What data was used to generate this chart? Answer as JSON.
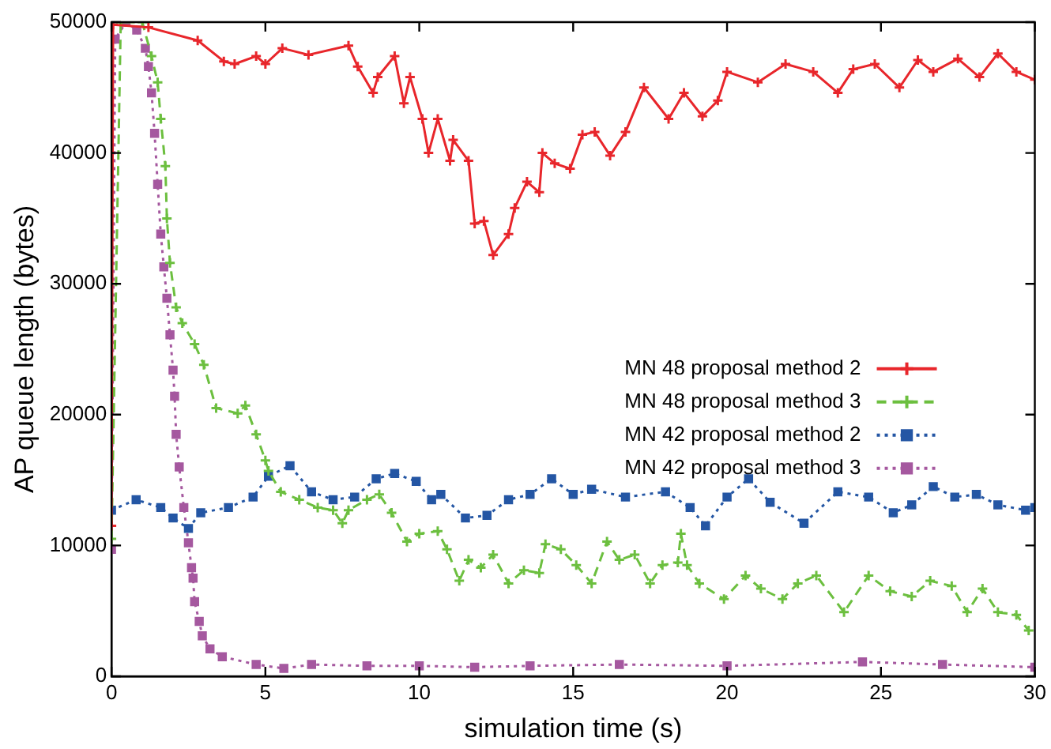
{
  "chart_data": {
    "type": "line",
    "xlabel": "simulation time (s)",
    "ylabel": "AP queue length (bytes)",
    "xlim": [
      0,
      30
    ],
    "xticks": [
      0,
      5,
      10,
      15,
      20,
      25,
      30
    ],
    "ylim": [
      0,
      50000
    ],
    "yticks": [
      0,
      10000,
      20000,
      30000,
      40000,
      50000
    ],
    "grid": false,
    "legend": "right",
    "series": [
      {
        "name": "MN 48 proposal method 2",
        "color": "#e8262b",
        "marker": "cross",
        "line_style": "solid",
        "x": [
          0,
          0.05,
          1.2,
          2.8,
          3.65,
          4.0,
          4.7,
          5.0,
          5.55,
          6.4,
          7.7,
          8.0,
          8.5,
          8.65,
          9.2,
          9.5,
          9.7,
          10.1,
          10.3,
          10.6,
          11.0,
          11.1,
          11.6,
          11.8,
          12.1,
          12.4,
          12.9,
          13.1,
          13.5,
          13.9,
          14.0,
          14.4,
          14.9,
          15.3,
          15.7,
          16.2,
          16.7,
          17.3,
          18.1,
          18.6,
          19.2,
          19.7,
          20.0,
          21.0,
          21.9,
          22.8,
          23.6,
          24.1,
          24.8,
          25.6,
          26.2,
          26.7,
          27.5,
          28.2,
          28.8,
          29.4,
          30.0
        ],
        "values": [
          11500,
          49800,
          49600,
          48600,
          47000,
          46800,
          47400,
          46800,
          48000,
          47500,
          48200,
          46600,
          44600,
          45800,
          47400,
          43800,
          45800,
          42600,
          40000,
          42600,
          39400,
          41000,
          39400,
          34600,
          34800,
          32200,
          33800,
          35800,
          37800,
          37000,
          40000,
          39200,
          38800,
          41400,
          41600,
          39800,
          41600,
          45000,
          42600,
          44600,
          42800,
          44000,
          46200,
          45400,
          46800,
          46200,
          44600,
          46400,
          46800,
          45000,
          47100,
          46200,
          47200,
          45800,
          47600,
          46200,
          45600
        ]
      },
      {
        "name": "MN 48 proposal method 3",
        "color": "#6cbf3f",
        "marker": "cross",
        "line_style": "dashed",
        "x": [
          0,
          0.3,
          1.0,
          1.3,
          1.5,
          1.6,
          1.75,
          1.8,
          1.9,
          2.1,
          2.3,
          2.7,
          3.0,
          3.4,
          4.1,
          4.35,
          4.7,
          5.0,
          5.1,
          5.5,
          6.1,
          6.7,
          7.2,
          7.5,
          7.7,
          8.3,
          8.7,
          9.1,
          9.6,
          10.0,
          10.6,
          10.9,
          11.3,
          11.6,
          12.0,
          12.4,
          12.9,
          13.4,
          13.9,
          14.1,
          14.6,
          15.1,
          15.6,
          16.1,
          16.5,
          17.0,
          17.5,
          17.9,
          18.4,
          18.5,
          18.7,
          19.1,
          19.9,
          20.6,
          21.1,
          21.8,
          22.3,
          22.9,
          23.8,
          24.6,
          25.3,
          26.0,
          26.6,
          27.3,
          27.8,
          28.3,
          28.8,
          29.4,
          29.8
        ],
        "values": [
          10500,
          50000,
          50000,
          47400,
          45400,
          42600,
          39000,
          35000,
          31600,
          28200,
          27000,
          25400,
          23800,
          20500,
          20100,
          20700,
          18500,
          16500,
          15700,
          14100,
          13500,
          12900,
          12700,
          11700,
          12700,
          13500,
          13900,
          12500,
          10300,
          10900,
          11100,
          9700,
          7300,
          8900,
          8300,
          9300,
          7100,
          8100,
          7900,
          10100,
          9700,
          8500,
          7100,
          10300,
          8900,
          9300,
          7100,
          8500,
          8700,
          10900,
          8500,
          7100,
          5900,
          7700,
          6700,
          5900,
          7100,
          7700,
          4900,
          7700,
          6500,
          6100,
          7300,
          6900,
          4900,
          6700,
          4900,
          4700,
          3500
        ]
      },
      {
        "name": "MN 42 proposal method 2",
        "color": "#2456a4",
        "marker": "square",
        "line_style": "dotted",
        "x": [
          0,
          0.8,
          1.6,
          2.0,
          2.5,
          2.9,
          3.8,
          4.6,
          5.1,
          5.8,
          6.5,
          7.2,
          7.9,
          8.6,
          9.2,
          9.9,
          10.4,
          10.7,
          11.5,
          12.2,
          12.9,
          13.6,
          14.3,
          15.0,
          15.6,
          16.7,
          18.0,
          18.8,
          19.3,
          20.0,
          20.7,
          21.4,
          22.5,
          23.6,
          24.6,
          25.4,
          26.0,
          26.7,
          27.4,
          28.1,
          28.8,
          29.7,
          30.0
        ],
        "values": [
          12700,
          13500,
          12900,
          12100,
          11300,
          12500,
          12900,
          13700,
          15300,
          16100,
          14100,
          13500,
          13700,
          15100,
          15500,
          14900,
          13500,
          13900,
          12100,
          12300,
          13500,
          13900,
          15100,
          13900,
          14300,
          13700,
          14100,
          12900,
          11500,
          13700,
          15100,
          13300,
          11700,
          14100,
          13700,
          12500,
          13100,
          14500,
          13700,
          13900,
          13100,
          12700,
          12900
        ]
      },
      {
        "name": "MN 42 proposal method 3",
        "color": "#a5589f",
        "marker": "square",
        "line_style": "dotted",
        "x": [
          0,
          0.12,
          0.47,
          0.82,
          1.1,
          1.2,
          1.3,
          1.4,
          1.5,
          1.6,
          1.7,
          1.8,
          1.9,
          2.0,
          2.05,
          2.1,
          2.2,
          2.35,
          2.5,
          2.6,
          2.65,
          2.7,
          2.85,
          2.95,
          3.2,
          3.6,
          4.7,
          5.6,
          6.5,
          8.3,
          10.0,
          11.8,
          13.6,
          16.5,
          20.0,
          24.4,
          27.0,
          30.0
        ],
        "values": [
          9700,
          48700,
          50000,
          49400,
          48000,
          46600,
          44600,
          41500,
          37600,
          33800,
          31300,
          28900,
          26100,
          23400,
          21400,
          18500,
          16000,
          12900,
          10200,
          8300,
          7500,
          5700,
          4200,
          3100,
          2100,
          1500,
          900,
          600,
          900,
          800,
          800,
          700,
          800,
          900,
          800,
          1100,
          900,
          700
        ]
      }
    ]
  }
}
